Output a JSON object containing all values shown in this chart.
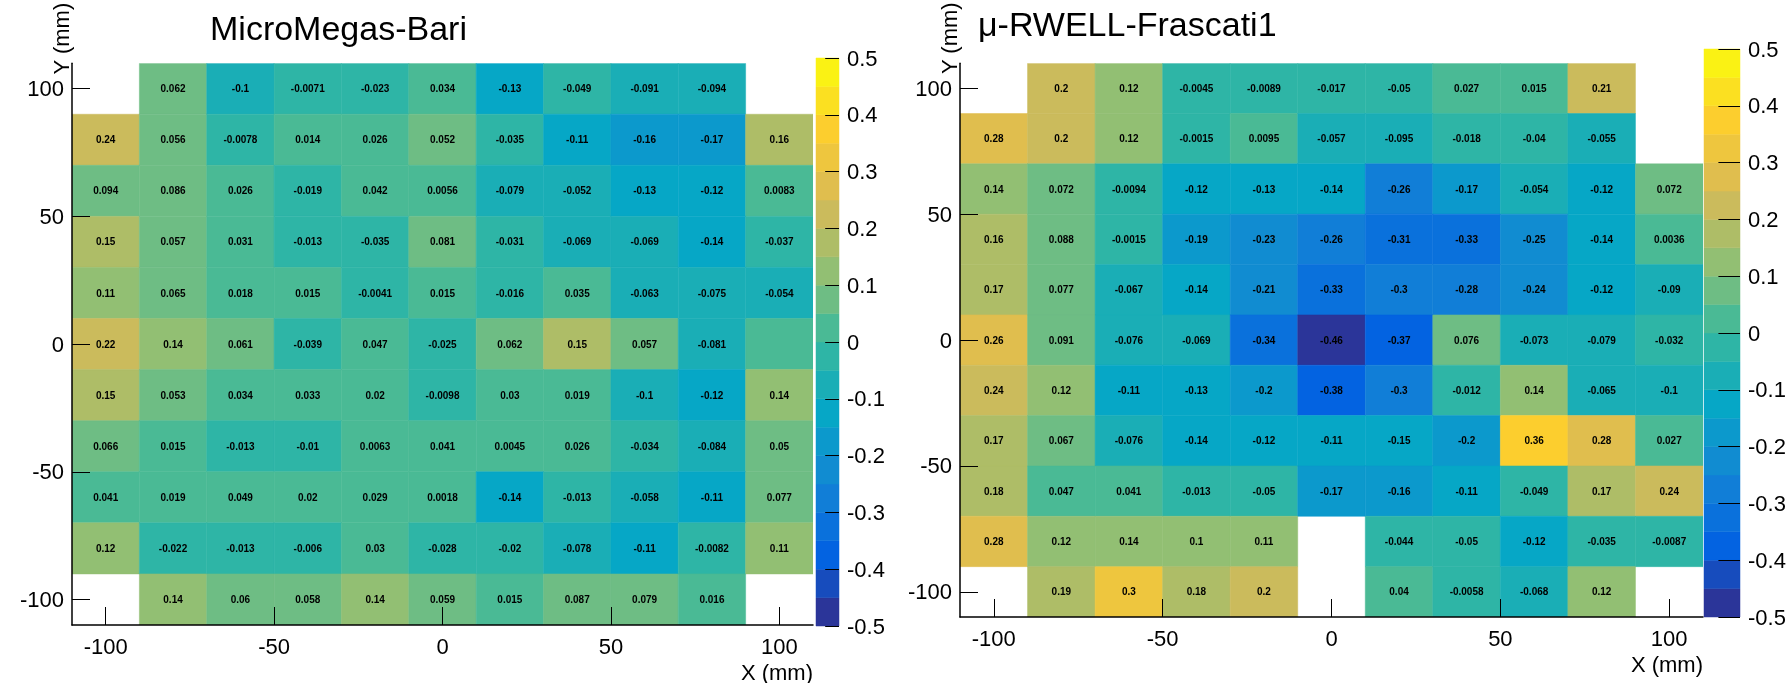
{
  "chart_data": [
    {
      "type": "heatmap",
      "title": "MicroMegas-Bari",
      "xlabel": "X (mm)",
      "ylabel": "Y (mm)",
      "x": [
        -100,
        -80,
        -60,
        -40,
        -20,
        0,
        20,
        40,
        60,
        80,
        100
      ],
      "y": [
        100,
        80,
        60,
        40,
        20,
        0,
        -20,
        -40,
        -60,
        -80,
        -100
      ],
      "xlim": [
        -110,
        110
      ],
      "xticks": [
        -100,
        -50,
        0,
        50,
        100
      ],
      "ylim": [
        -110,
        110
      ],
      "yticks": [
        -100,
        -50,
        0,
        50,
        100
      ],
      "clim": [
        -0.5,
        0.5
      ],
      "cticks": [
        -0.5,
        -0.4,
        -0.3,
        -0.2,
        -0.1,
        0,
        0.1,
        0.2,
        0.3,
        0.4,
        0.5
      ],
      "cells": [
        [
          null,
          0.062,
          -0.1,
          -0.0071,
          -0.023,
          0.034,
          -0.13,
          -0.049,
          -0.091,
          -0.094,
          null
        ],
        [
          0.24,
          0.056,
          -0.0078,
          0.014,
          0.026,
          0.052,
          -0.035,
          -0.11,
          -0.16,
          -0.17,
          0.16
        ],
        [
          0.094,
          0.086,
          0.026,
          -0.019,
          0.042,
          0.0056,
          -0.079,
          -0.052,
          -0.13,
          -0.12,
          0.0083
        ],
        [
          0.15,
          0.057,
          0.031,
          -0.013,
          -0.035,
          0.081,
          -0.031,
          -0.069,
          -0.069,
          -0.14,
          -0.037
        ],
        [
          0.11,
          0.065,
          0.018,
          0.015,
          -0.0041,
          0.015,
          -0.016,
          0.035,
          -0.063,
          -0.075,
          -0.054
        ],
        [
          0.22,
          0.14,
          0.061,
          -0.039,
          0.047,
          -0.025,
          0.062,
          0.15,
          0.057,
          -0.081,
          0
        ],
        [
          0.15,
          0.053,
          0.034,
          0.033,
          0.02,
          -0.0098,
          0.03,
          0.019,
          -0.1,
          -0.12,
          0.14
        ],
        [
          0.066,
          0.015,
          -0.013,
          -0.01,
          0.0063,
          0.041,
          0.0045,
          0.026,
          -0.034,
          -0.084,
          0.05
        ],
        [
          0.041,
          0.019,
          0.049,
          0.02,
          0.029,
          0.0018,
          -0.14,
          -0.013,
          -0.058,
          -0.11,
          0.077
        ],
        [
          0.12,
          -0.022,
          -0.013,
          -0.006,
          0.03,
          -0.028,
          -0.02,
          -0.078,
          -0.11,
          -0.0082,
          0.11
        ],
        [
          null,
          0.14,
          0.06,
          0.058,
          0.14,
          0.059,
          0.015,
          0.087,
          0.079,
          0.016,
          null
        ]
      ],
      "cell_labels": [
        [
          null,
          "0.062",
          "-0.1",
          "-0.0071",
          "-0.023",
          "0.034",
          "-0.13",
          "-0.049",
          "-0.091",
          "-0.094",
          null
        ],
        [
          "0.24",
          "0.056",
          "-0.0078",
          "0.014",
          "0.026",
          "0.052",
          "-0.035",
          "-0.11",
          "-0.16",
          "-0.17",
          "0.16"
        ],
        [
          "0.094",
          "0.086",
          "0.026",
          "-0.019",
          "0.042",
          "0.0056",
          "-0.079",
          "-0.052",
          "-0.13",
          "-0.12",
          "0.0083"
        ],
        [
          "0.15",
          "0.057",
          "0.031",
          "-0.013",
          "-0.035",
          "0.081",
          "-0.031",
          "-0.069",
          "-0.069",
          "-0.14",
          "-0.037"
        ],
        [
          "0.11",
          "0.065",
          "0.018",
          "0.015",
          "-0.0041",
          "0.015",
          "-0.016",
          "0.035",
          "-0.063",
          "-0.075",
          "-0.054"
        ],
        [
          "0.22",
          "0.14",
          "0.061",
          "-0.039",
          "0.047",
          "-0.025",
          "0.062",
          "0.15",
          "0.057",
          "-0.081",
          null
        ],
        [
          "0.15",
          "0.053",
          "0.034",
          "0.033",
          "0.02",
          "-0.0098",
          "0.03",
          "0.019",
          "-0.1",
          "-0.12",
          "0.14"
        ],
        [
          "0.066",
          "0.015",
          "-0.013",
          "-0.01",
          "0.0063",
          "0.041",
          "0.0045",
          "0.026",
          "-0.034",
          "-0.084",
          "0.05"
        ],
        [
          "0.041",
          "0.019",
          "0.049",
          "0.02",
          "0.029",
          "0.0018",
          "-0.14",
          "-0.013",
          "-0.058",
          "-0.11",
          "0.077"
        ],
        [
          "0.12",
          "-0.022",
          "-0.013",
          "-0.006",
          "0.03",
          "-0.028",
          "-0.02",
          "-0.078",
          "-0.11",
          "-0.0082",
          "0.11"
        ],
        [
          null,
          "0.14",
          "0.06",
          "0.058",
          "0.14",
          "0.059",
          "0.015",
          "0.087",
          "0.079",
          "0.016",
          null
        ]
      ]
    },
    {
      "type": "heatmap",
      "title": "μ-RWELL-Frascati1",
      "xlabel": "X (mm)",
      "ylabel": "Y (mm)",
      "x": [
        -100,
        -80,
        -60,
        -40,
        -20,
        0,
        20,
        40,
        60,
        80,
        100
      ],
      "y": [
        100,
        80,
        60,
        40,
        20,
        0,
        -20,
        -40,
        -60,
        -80,
        -100
      ],
      "xlim": [
        -110,
        110
      ],
      "xticks": [
        -100,
        -50,
        0,
        50,
        100
      ],
      "ylim": [
        -110,
        110
      ],
      "yticks": [
        -100,
        -50,
        0,
        50,
        100
      ],
      "clim": [
        -0.5,
        0.5
      ],
      "cticks": [
        -0.5,
        -0.4,
        -0.3,
        -0.2,
        -0.1,
        0,
        0.1,
        0.2,
        0.3,
        0.4,
        0.5
      ],
      "data_labels": true,
      "cells": [
        [
          null,
          0.2,
          0.12,
          -0.0045,
          -0.0089,
          -0.017,
          -0.05,
          0.027,
          0.015,
          0.21,
          null
        ],
        [
          0.28,
          0.2,
          0.12,
          -0.0015,
          0.0095,
          -0.057,
          -0.095,
          -0.018,
          -0.04,
          -0.055,
          null
        ],
        [
          0.14,
          0.072,
          -0.0094,
          -0.12,
          -0.13,
          -0.14,
          -0.26,
          -0.17,
          -0.054,
          -0.12,
          0.072
        ],
        [
          0.16,
          0.088,
          -0.0015,
          -0.19,
          -0.23,
          -0.26,
          -0.31,
          -0.33,
          -0.25,
          -0.14,
          0.0036
        ],
        [
          0.17,
          0.077,
          -0.067,
          -0.14,
          -0.21,
          -0.33,
          -0.3,
          -0.28,
          -0.24,
          -0.12,
          -0.09
        ],
        [
          0.26,
          0.091,
          -0.076,
          -0.069,
          -0.34,
          -0.46,
          -0.37,
          0.076,
          -0.073,
          -0.079,
          -0.032
        ],
        [
          0.24,
          0.12,
          -0.11,
          -0.13,
          -0.2,
          -0.38,
          -0.3,
          -0.012,
          0.14,
          -0.065,
          -0.1
        ],
        [
          0.17,
          0.067,
          -0.076,
          -0.14,
          -0.12,
          -0.11,
          -0.15,
          -0.2,
          0.36,
          0.28,
          0.027
        ],
        [
          0.18,
          0.047,
          0.041,
          -0.013,
          -0.05,
          -0.17,
          -0.16,
          -0.11,
          -0.049,
          0.17,
          0.24
        ],
        [
          0.28,
          0.12,
          0.14,
          0.1,
          0.11,
          null,
          -0.044,
          -0.05,
          -0.12,
          -0.035,
          -0.0087
        ],
        [
          null,
          0.19,
          0.3,
          0.18,
          0.2,
          null,
          0.04,
          -0.0058,
          -0.068,
          0.12,
          null
        ]
      ]
    }
  ]
}
